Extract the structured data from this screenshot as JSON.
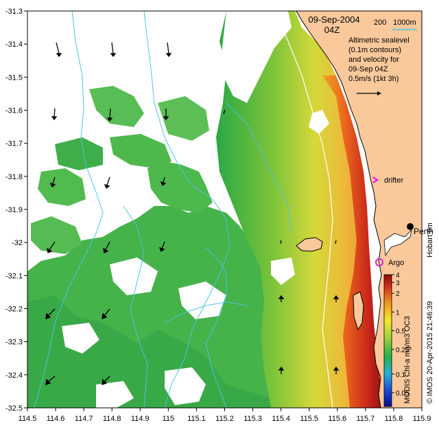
{
  "map": {
    "date_label": "09-Sep-2004",
    "time_label": "04Z",
    "scale": {
      "label_200": "200",
      "label_1000m": "1000m"
    },
    "legend_note": {
      "lines": [
        "Altimetric sealevel",
        "(0.1m contours)",
        "and velocity for",
        "09-Sep 04Z",
        "0.5m/s (1kt 3h)"
      ]
    },
    "places": {
      "perth": "Perth",
      "hobart": "Hobart tim"
    },
    "markers": {
      "drifter": "drifter",
      "argo": "Argo"
    },
    "credit": "© IMOS 20-Apr-2015 21:46:39",
    "colorbar": {
      "title": "MODIS Chl-a mg/m3 OC3",
      "ticks": [
        "4",
        "3",
        "2",
        "1",
        "0.5",
        "0.25",
        "0.1",
        "0.05"
      ],
      "tick_values": [
        4,
        3,
        2,
        1,
        0.5,
        0.25,
        0.1,
        0.05
      ]
    },
    "axes": {
      "x_ticks": [
        "114.5",
        "114.6",
        "114.7",
        "114.8",
        "114.9",
        "115",
        "115.1",
        "115.2",
        "115.3",
        "115.4",
        "115.5",
        "115.6",
        "115.7",
        "115.8",
        "115.9"
      ],
      "y_ticks": [
        "-31.3",
        "-31.4",
        "-31.5",
        "-31.6",
        "-31.7",
        "-31.8",
        "-31.9",
        "-32",
        "-32.1",
        "-32.2",
        "-32.3",
        "-32.4",
        "-32.5"
      ],
      "xlim": [
        114.5,
        115.9
      ],
      "ylim": [
        -32.5,
        -31.3
      ]
    },
    "colors": {
      "land": "#f9c89b",
      "white_ocean": "#ffffff",
      "contour_cyan": "#49c6e5",
      "drifter_magenta": "#ff00ff",
      "argo_magenta": "#e020c8"
    }
  }
}
